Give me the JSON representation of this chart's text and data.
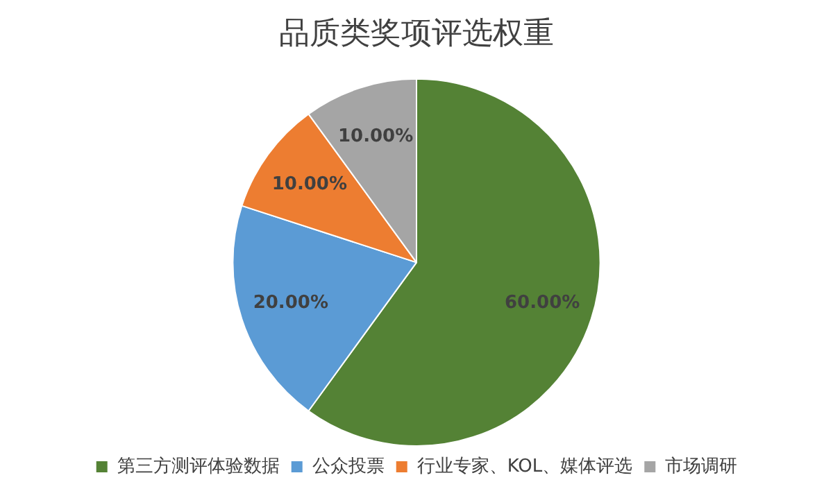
{
  "chart_data": {
    "type": "pie",
    "title": "品质类奖项评选权重",
    "categories": [
      "第三方测评体验数据",
      "公众投票",
      "行业专家、KOL、媒体评选",
      "市场调研"
    ],
    "values": [
      60,
      20,
      10,
      10
    ],
    "colors": [
      "#548235",
      "#5b9bd5",
      "#ed7d31",
      "#a5a5a5"
    ],
    "value_labels": [
      "60.00%",
      "20.00%",
      "10.00%",
      "10.00%"
    ],
    "legend": "bottom"
  }
}
